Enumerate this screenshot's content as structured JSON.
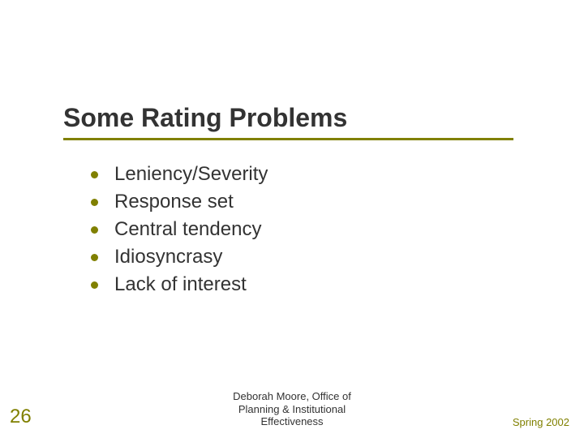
{
  "slide": {
    "title": "Some Rating Problems",
    "title_fontsize": 32,
    "title_color": "#333333",
    "underline_color": "#808000",
    "bullets": [
      "Leniency/Severity",
      "Response set",
      "Central tendency",
      "Idiosyncrasy",
      "Lack of interest"
    ],
    "bullet_color": "#808000",
    "bullet_text_fontsize": 24,
    "bullet_text_color": "#333333",
    "background_color": "#ffffff"
  },
  "footer": {
    "page_number": "26",
    "page_number_color": "#808000",
    "center_line1": "Deborah Moore, Office of",
    "center_line2": "Planning & Institutional",
    "center_line3": "Effectiveness",
    "center_color": "#333333",
    "right": "Spring 2002",
    "right_color": "#808000",
    "fontsize": 13
  }
}
